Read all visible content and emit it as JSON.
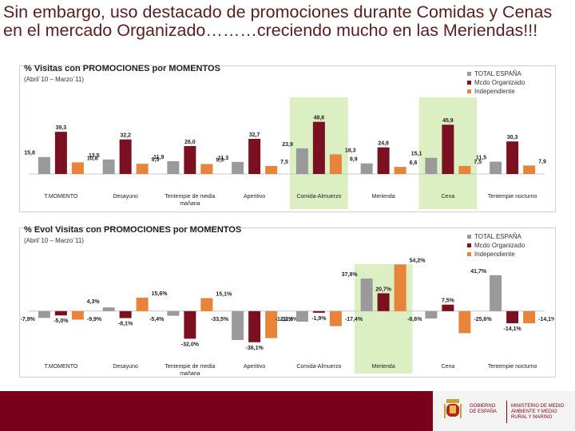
{
  "headline": "Sin embargo, uso destacado de promociones durante Comidas y Cenas en el mercado Organizado………creciendo mucho en las Meriendas!!!",
  "colors": {
    "total": "#9a9a9a",
    "organizado": "#7a1020",
    "independiente": "#e8843a",
    "highlight": "#dcefc2",
    "headline": "#5a2020",
    "footer": "#7a0019"
  },
  "legend": [
    "TOTAL ESPAÑA",
    "Mcdo Organizado",
    "Independiente"
  ],
  "chart_data": [
    {
      "type": "bar",
      "title": "% Visitas con PROMOCIONES por MOMENTOS",
      "period": "(Abril´10 – Marzo´11)",
      "categories": [
        "T.MOMENTO",
        "Desayuno",
        "Tentempie de media mañana",
        "Aperitivo",
        "Comida-Almuerzo",
        "Merienda",
        "Cena",
        "Tentempie nocturno"
      ],
      "highlighted": [
        "Comida-Almuerzo",
        "Cena"
      ],
      "series": [
        {
          "name": "TOTAL ESPAÑA",
          "values": [
            15.8,
            13.5,
            11.9,
            11.3,
            23.9,
            9.9,
            15.1,
            11.5
          ],
          "labels": [
            "15,8",
            "13,5",
            "11,9",
            "11,3",
            "23,9",
            "9,9",
            "15,1",
            "11,5"
          ]
        },
        {
          "name": "Mcdo Organizado",
          "values": [
            39.3,
            32.2,
            26.0,
            32.7,
            48.6,
            24.8,
            45.9,
            30.3
          ],
          "labels": [
            "39,3",
            "32,2",
            "26,0",
            "32,7",
            "48,6",
            "24,8",
            "45,9",
            "30,3"
          ]
        },
        {
          "name": "Independiente",
          "values": [
            10.8,
            9.5,
            9.3,
            7.5,
            18.3,
            6.6,
            7.5,
            7.9
          ],
          "labels": [
            "10,8",
            "9,5",
            "9,3",
            "7,5",
            "18,3",
            "6,6",
            "7,5",
            "7,9"
          ]
        }
      ],
      "ylim": [
        0,
        55
      ]
    },
    {
      "type": "bar",
      "title": "% Evol Visitas con PROMOCIONES por MOMENTOS",
      "period": "(Abril´10 – Marzo´11)",
      "categories": [
        "T.MOMENTO",
        "Desayuno",
        "Tentempie de media mañana",
        "Aperitivo",
        "Comida-Almuerzo",
        "Merienda",
        "Cena",
        "Tentempie nocturno"
      ],
      "highlighted": [
        "Merienda"
      ],
      "series": [
        {
          "name": "TOTAL ESPAÑA",
          "values": [
            -7.9,
            4.3,
            -5.4,
            -33.5,
            -12.2,
            37.8,
            -8.6,
            41.7
          ],
          "labels": [
            "-7,9%",
            "4,3%",
            "-5,4%",
            "-33,5%",
            "-12,2%",
            "37,8%",
            "-8,6%",
            "41,7%"
          ]
        },
        {
          "name": "Mcdo Organizado",
          "values": [
            -5.0,
            -8.1,
            -32.0,
            -36.1,
            -1.9,
            20.7,
            7.5,
            -14.1
          ],
          "labels": [
            "-5,0%",
            "-8,1%",
            "-32,0%",
            "-36,1%",
            "-1,9%",
            "20,7%",
            "7,5%",
            "-14,1%"
          ]
        },
        {
          "name": "Independiente",
          "values": [
            -9.9,
            15.6,
            15.1,
            -31.3,
            -17.4,
            54.2,
            -25.6,
            -14.1
          ],
          "labels": [
            "-9,9%",
            "15,6%",
            "15,1%",
            "-31,3%",
            "-17,4%",
            "54,2%",
            "-25,6%",
            "-14,1%"
          ]
        }
      ],
      "ylim": [
        -40,
        60
      ]
    }
  ],
  "footer": {
    "gov": "GOBIERNO DE ESPAÑA",
    "ministry": "MINISTERIO DE MEDIO AMBIENTE Y MEDIO RURAL Y MARINO"
  }
}
